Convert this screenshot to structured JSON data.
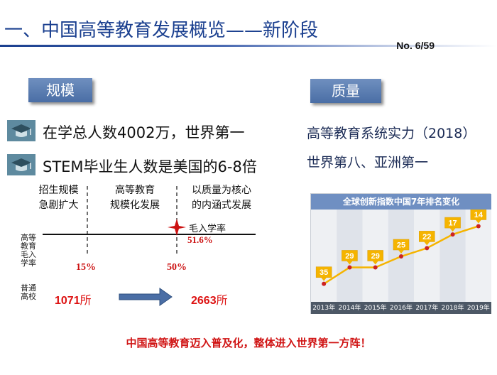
{
  "header": {
    "title": "一、中国高等教育发展概览——新阶段",
    "page_number": "No. 6/59"
  },
  "left": {
    "tag": "规模",
    "bullets": [
      {
        "icon": "graduation-cap-icon",
        "text": "在学总人数4002万，世界第一"
      },
      {
        "icon": "graduation-cap-icon",
        "text": "STEM毕业生人数是美国的6-8倍"
      }
    ],
    "diagram": {
      "phases": [
        "招生规模\n急剧扩大",
        "高等教育\n规模化发展",
        "以质量为核心\n的内涵式发展"
      ],
      "y_label": "高等\n教育\n毛入\n学率",
      "thresholds": [
        "15%",
        "50%"
      ],
      "point_label": "毛入学率",
      "point_value": "51.6%",
      "row_label": "普通\n高校",
      "count_from": "1071",
      "count_to": "2663",
      "count_unit": "所",
      "colors": {
        "marker": "#cc1111",
        "arrow_fill": "#4a6ea5"
      }
    }
  },
  "right": {
    "tag": "质量",
    "lines": [
      "高等教育系统实力（2018）",
      "世界第八、亚洲第一"
    ]
  },
  "chart_data": {
    "type": "line",
    "title": "全球创新指数中国7年排名变化",
    "categories": [
      "2013年",
      "2014年",
      "2015年",
      "2016年",
      "2017年",
      "2018年",
      "2019年"
    ],
    "values": [
      35,
      29,
      29,
      25,
      22,
      17,
      14
    ],
    "y_reversed": true,
    "ylim": [
      40,
      10
    ],
    "grid": false,
    "colors": {
      "line": "#f5b400",
      "marker": "#cc2222",
      "label_bg": "#f5b400",
      "title_bg": "#6f8fc2"
    }
  },
  "footer": {
    "text": "中国高等教育迈入普及化，整体进入世界第一方阵！"
  }
}
